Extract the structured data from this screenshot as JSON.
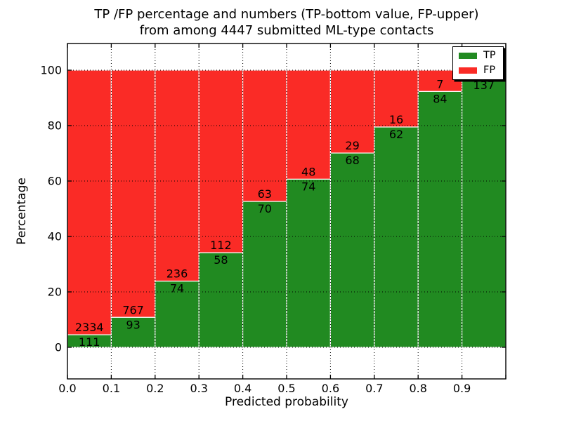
{
  "title": {
    "line1": "TP /FP percentage and numbers (TP-bottom value, FP-upper)",
    "line2": "from among 4447 submitted ML-type contacts"
  },
  "axes": {
    "xlabel": "Predicted probability",
    "ylabel": "Percentage",
    "x_tick_labels": [
      "0.0",
      "0.1",
      "0.2",
      "0.3",
      "0.4",
      "0.5",
      "0.6",
      "0.7",
      "0.8",
      "0.9"
    ],
    "y_tick_labels": [
      "0",
      "20",
      "40",
      "60",
      "80",
      "100"
    ],
    "xlim": [
      0.0,
      1.0
    ],
    "ylim_percent": [
      0,
      100
    ],
    "grid": "dotted black"
  },
  "legend": {
    "position": "upper right",
    "entries": [
      {
        "label": "TP",
        "color": "#218a21"
      },
      {
        "label": "FP",
        "color": "#fa2b26"
      }
    ]
  },
  "colors": {
    "tp_fill": "#218a21",
    "fp_fill": "#fa2b26",
    "bar_edge": "#ffffff",
    "grid_line": "#000000",
    "background": "#ffffff"
  },
  "chart_data": {
    "type": "bar",
    "stacked": true,
    "normalized_to_percent": true,
    "title": "TP /FP percentage and numbers (TP-bottom value, FP-upper) from among 4447 submitted ML-type contacts",
    "xlabel": "Predicted probability",
    "ylabel": "Percentage",
    "total_contacts": 4447,
    "bin_edges": [
      0.0,
      0.1,
      0.2,
      0.3,
      0.4,
      0.5,
      0.6,
      0.7,
      0.8,
      0.9,
      1.0
    ],
    "categories": [
      "0.0-0.1",
      "0.1-0.2",
      "0.2-0.3",
      "0.3-0.4",
      "0.4-0.5",
      "0.5-0.6",
      "0.6-0.7",
      "0.7-0.8",
      "0.8-0.9",
      "0.9-1.0"
    ],
    "series": [
      {
        "name": "TP",
        "color": "#218a21",
        "values": [
          111,
          93,
          74,
          58,
          70,
          74,
          68,
          62,
          84,
          137
        ]
      },
      {
        "name": "FP",
        "color": "#fa2b26",
        "values": [
          2334,
          767,
          236,
          112,
          63,
          48,
          29,
          16,
          7,
          4
        ],
        "note": "last FP count (4) is depicted by the thin red sliver; its numeric label is hidden behind the legend"
      }
    ],
    "tp_percent_of_bin": [
      4.5,
      10.8,
      23.9,
      34.1,
      52.6,
      60.7,
      70.1,
      79.5,
      92.3,
      97.2
    ],
    "ylim": [
      0,
      100
    ],
    "grid": true,
    "legend_position": "upper right"
  },
  "bar_labels": {
    "tp": [
      "111",
      "93",
      "74",
      "58",
      "70",
      "74",
      "68",
      "62",
      "84",
      "137"
    ],
    "fp": [
      "2334",
      "767",
      "236",
      "112",
      "63",
      "48",
      "29",
      "16",
      "7",
      null
    ]
  }
}
